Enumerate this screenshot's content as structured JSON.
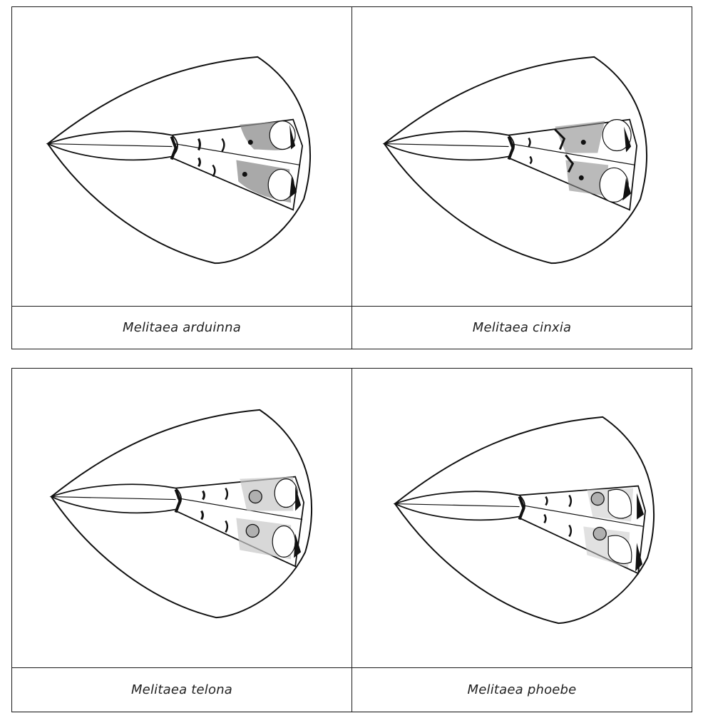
{
  "panels": [
    {
      "species": "Melitaea arduinna",
      "variant": "dark-shaded"
    },
    {
      "species": "Melitaea cinxia",
      "variant": "shaded-angled"
    },
    {
      "species": "Melitaea telona",
      "variant": "ringed-spots"
    },
    {
      "species": "Melitaea phoebe",
      "variant": "ringed-spots-light"
    }
  ],
  "colors": {
    "ink": "#111111",
    "shade": "#8c8c8c",
    "shade_light": "#c8c8c8",
    "spot_fill": "#b0b0b0"
  }
}
